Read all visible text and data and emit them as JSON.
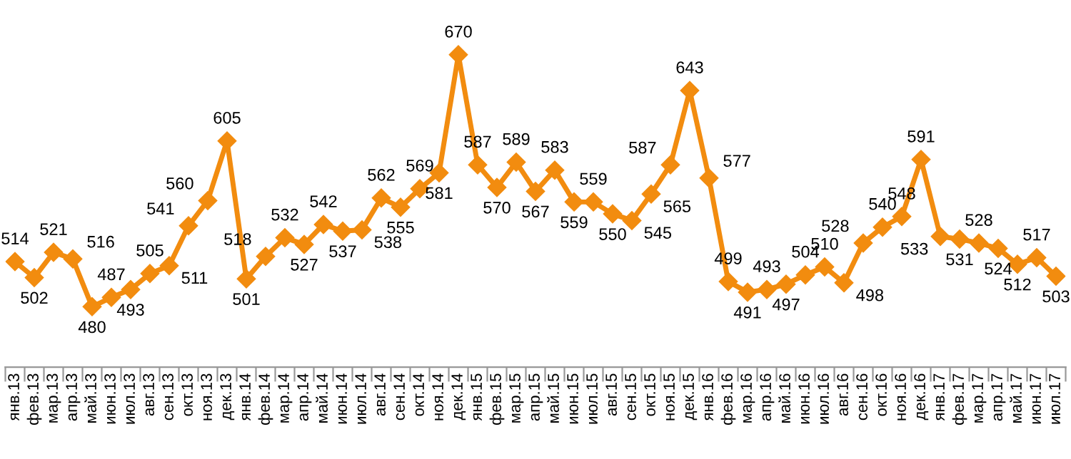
{
  "chart_data": {
    "type": "line",
    "categories": [
      "янв.13",
      "фев.13",
      "мар.13",
      "апр.13",
      "май.13",
      "июн.13",
      "июл.13",
      "авг.13",
      "сен.13",
      "окт.13",
      "ноя.13",
      "дек.13",
      "янв.14",
      "фев.14",
      "мар.14",
      "апр.14",
      "май.14",
      "июн.14",
      "июл.14",
      "авг.14",
      "сен.14",
      "окт.14",
      "ноя.14",
      "дек.14",
      "янв.15",
      "фев.15",
      "мар.15",
      "апр.15",
      "май.15",
      "июн.15",
      "июл.15",
      "авг.15",
      "сен.15",
      "окт.15",
      "ноя.15",
      "дек.15",
      "янв.16",
      "фев.16",
      "мар.16",
      "апр.16",
      "май.16",
      "июн.16",
      "июл.16",
      "авг.16",
      "сен.16",
      "окт.16",
      "ноя.16",
      "дек.16",
      "янв.17",
      "фев.17",
      "мар.17",
      "апр.17",
      "май.17",
      "июн.17",
      "июл.17"
    ],
    "series": [
      {
        "color": "#f28c0f",
        "values": [
          514,
          502,
          521,
          516,
          480,
          487,
          493,
          505,
          511,
          541,
          560,
          605,
          501,
          518,
          532,
          527,
          542,
          537,
          538,
          562,
          555,
          569,
          581,
          670,
          587,
          570,
          589,
          567,
          583,
          559,
          559,
          550,
          545,
          565,
          587,
          643,
          577,
          499,
          491,
          493,
          497,
          504,
          510,
          498,
          528,
          540,
          548,
          591,
          533,
          531,
          528,
          524,
          512,
          517,
          503
        ]
      }
    ],
    "data_labels": true,
    "marker": "diamond",
    "line_style": "solid",
    "grid": false,
    "legend": false
  }
}
